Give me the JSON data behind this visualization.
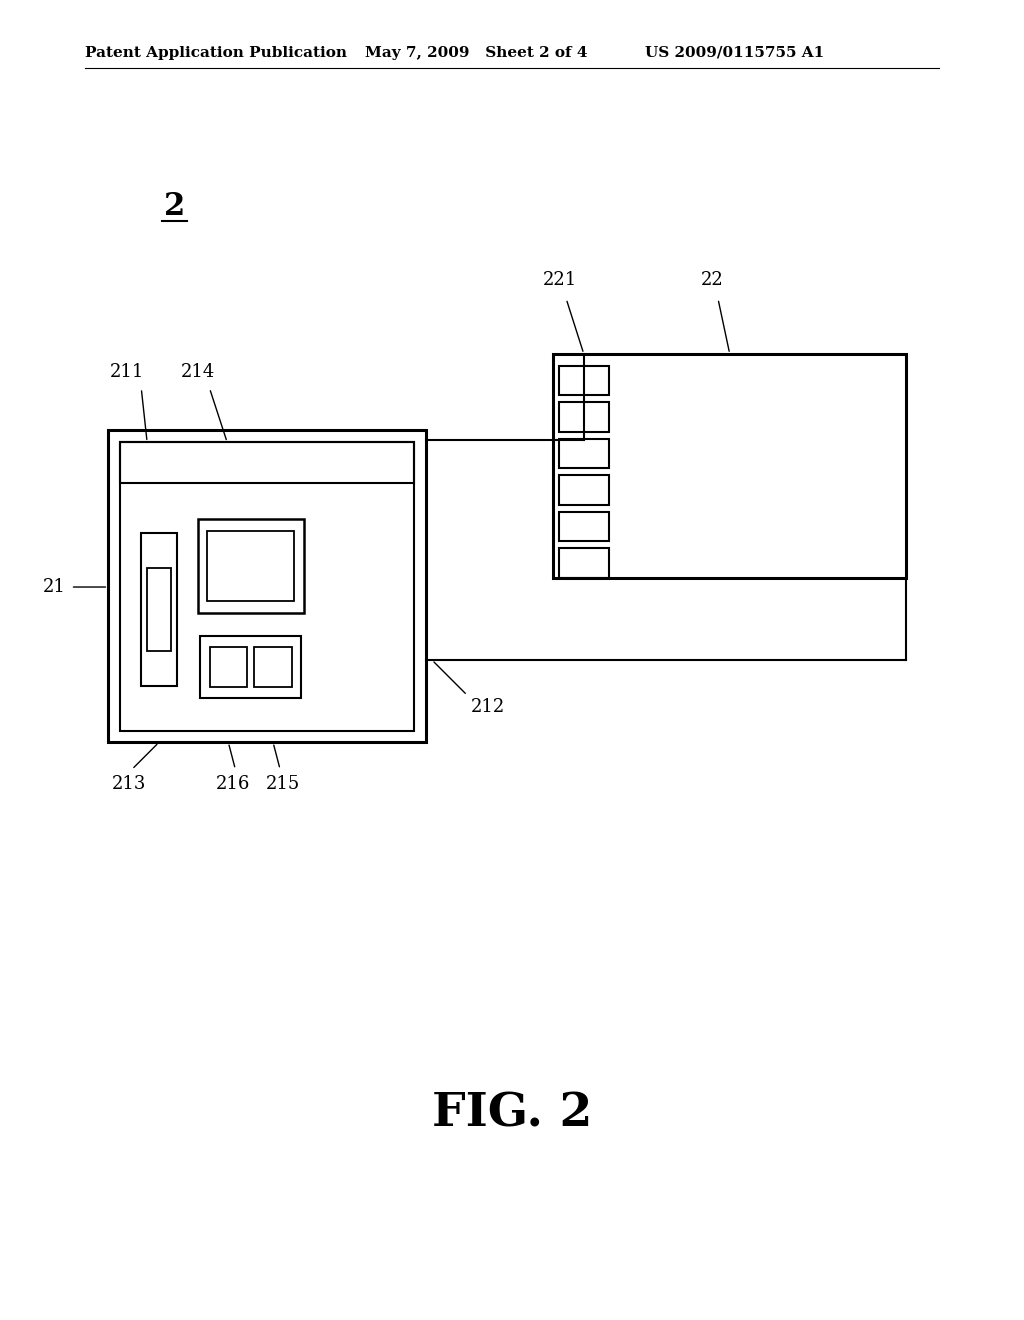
{
  "bg_color": "#ffffff",
  "header_left": "Patent Application Publication",
  "header_mid": "May 7, 2009   Sheet 2 of 4",
  "header_right": "US 2009/0115755 A1",
  "fig_label": "FIG. 2",
  "label_2": "2",
  "label_21": "21",
  "label_22": "22",
  "label_211": "211",
  "label_212": "212",
  "label_213": "213",
  "label_214": "214",
  "label_215": "215",
  "label_216": "216",
  "label_221": "221",
  "lc": "#000000",
  "lw": 1.5,
  "tlw": 2.2,
  "n_segments": 6,
  "header_fontsize": 11,
  "annot_fontsize": 13,
  "fig_label_fontsize": 34,
  "label2_fontsize": 22
}
